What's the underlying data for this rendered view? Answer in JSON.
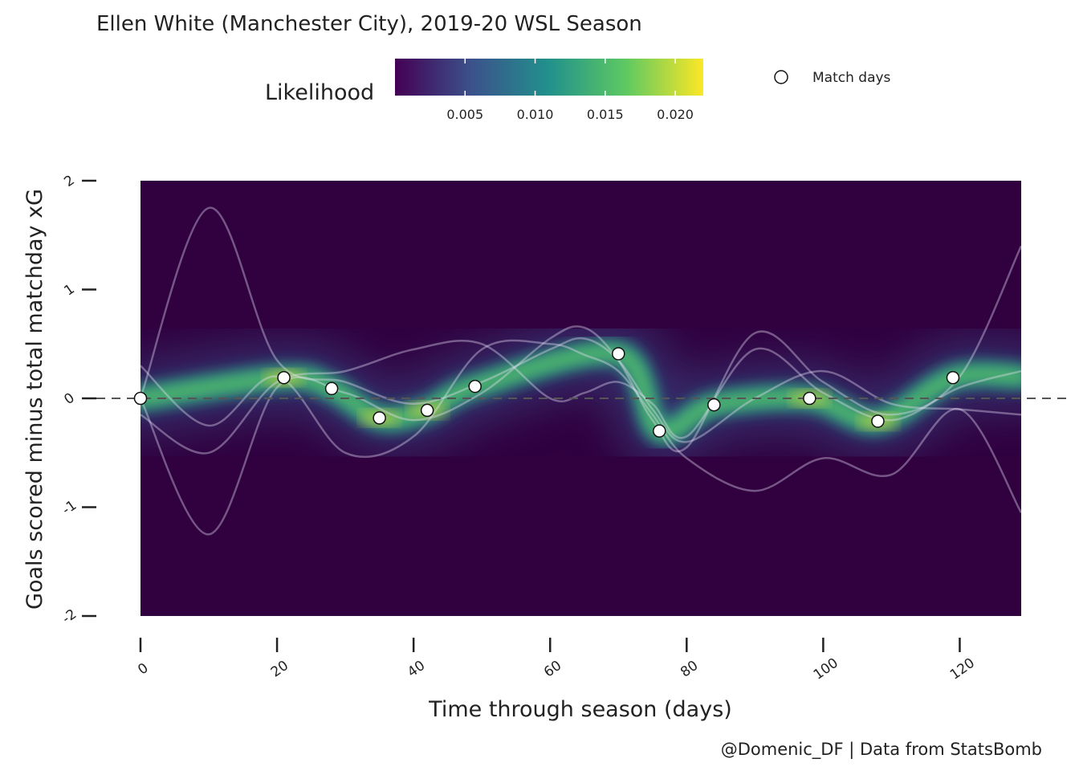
{
  "title": "Ellen White (Manchester City), 2019-20 WSL Season",
  "caption": "@Domenic_DF  |  Data from StatsBomb",
  "legend": {
    "fill_title": "Likelihood",
    "fill_ticks": [
      "0.005",
      "0.010",
      "0.015",
      "0.020"
    ],
    "point_label": "Match days"
  },
  "colors": {
    "viridis": [
      "#440154",
      "#3b528b",
      "#21918c",
      "#5ec962",
      "#fde725"
    ],
    "background": "#30003f",
    "point_fill": "#ffffff"
  },
  "chart_data": {
    "type": "heatmap",
    "title": "Ellen White (Manchester City), 2019-20 WSL Season",
    "xlabel": "Time through season (days)",
    "ylabel": "Goals scored minus total matchday xG",
    "xlim": [
      0,
      129
    ],
    "ylim": [
      -2,
      2
    ],
    "x_ticks": [
      0,
      20,
      40,
      60,
      80,
      100,
      120
    ],
    "y_ticks": [
      -2,
      -1,
      0,
      1,
      2
    ],
    "fill_range": [
      0.0,
      0.022
    ],
    "grid": false,
    "legend_position": "top",
    "reference_line": {
      "y": 0,
      "style": "dashed"
    },
    "match_days": {
      "name": "Match days",
      "x": [
        0,
        21,
        28,
        35,
        42,
        49,
        70,
        76,
        84,
        98,
        108,
        119
      ],
      "y": [
        0.0,
        0.19,
        0.09,
        -0.18,
        -0.11,
        0.11,
        0.41,
        -0.3,
        -0.06,
        0.0,
        -0.21,
        0.19
      ]
    },
    "sample_curves": [
      {
        "x": [
          0,
          10,
          20,
          30,
          40,
          50,
          60,
          65,
          70,
          75,
          80,
          90,
          100,
          110,
          120,
          129
        ],
        "y": [
          0.0,
          1.75,
          0.35,
          0.15,
          -0.05,
          0.15,
          0.45,
          0.55,
          0.35,
          -0.1,
          -0.4,
          0.0,
          0.25,
          -0.05,
          -0.1,
          -0.15
        ]
      },
      {
        "x": [
          0,
          10,
          20,
          30,
          40,
          50,
          60,
          65,
          70,
          75,
          80,
          90,
          100,
          110,
          120,
          129
        ],
        "y": [
          0.0,
          -1.25,
          0.1,
          0.05,
          -0.2,
          0.05,
          0.55,
          0.65,
          0.35,
          -0.2,
          -0.45,
          0.6,
          0.15,
          -0.15,
          0.2,
          1.4
        ]
      },
      {
        "x": [
          0,
          10,
          20,
          30,
          40,
          50,
          60,
          65,
          70,
          75,
          80,
          90,
          100,
          110,
          120,
          129
        ],
        "y": [
          0.3,
          -0.25,
          0.2,
          -0.5,
          -0.35,
          0.45,
          0.5,
          0.4,
          0.25,
          -0.15,
          -0.55,
          -0.85,
          -0.55,
          -0.7,
          -0.1,
          -1.05
        ]
      },
      {
        "x": [
          0,
          10,
          20,
          30,
          40,
          50,
          60,
          65,
          70,
          75,
          80,
          90,
          100,
          110,
          120,
          129
        ],
        "y": [
          -0.15,
          -0.5,
          0.15,
          0.25,
          0.45,
          0.5,
          0.0,
          0.05,
          0.15,
          -0.05,
          -0.35,
          0.45,
          0.05,
          -0.2,
          0.1,
          0.25
        ]
      }
    ]
  }
}
